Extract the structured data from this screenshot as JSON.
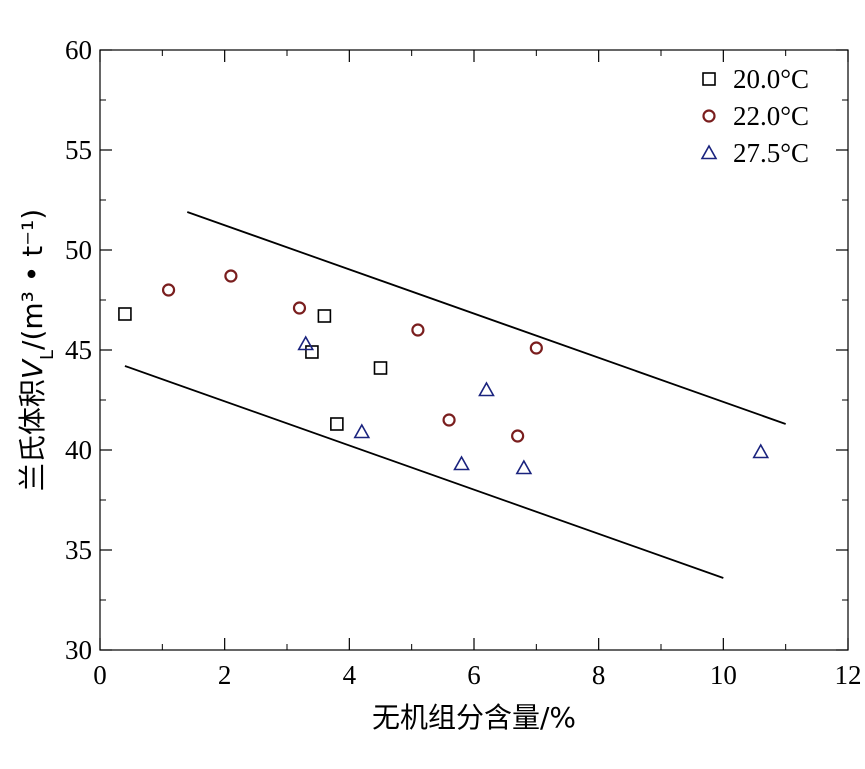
{
  "chart_data": {
    "type": "scatter",
    "xlabel": "无机组分含量/%",
    "ylabel": "兰氏体积V_L/(m³ • t⁻¹)",
    "xlim": [
      0,
      12
    ],
    "ylim": [
      30,
      60
    ],
    "xticks": [
      0,
      2,
      4,
      6,
      8,
      10,
      12
    ],
    "yticks": [
      30,
      35,
      40,
      45,
      50,
      55,
      60
    ],
    "grid": false,
    "legend_position": "top-right",
    "series": [
      {
        "name": "20.0°C",
        "marker": "square",
        "color": "#000000",
        "points": [
          [
            0.4,
            46.8
          ],
          [
            3.4,
            44.9
          ],
          [
            3.6,
            46.7
          ],
          [
            3.8,
            41.3
          ],
          [
            4.5,
            44.1
          ]
        ]
      },
      {
        "name": "22.0°C",
        "marker": "circle",
        "color": "#7a1e1e",
        "points": [
          [
            1.1,
            48.0
          ],
          [
            2.1,
            48.7
          ],
          [
            3.2,
            47.1
          ],
          [
            5.1,
            46.0
          ],
          [
            5.6,
            41.5
          ],
          [
            6.7,
            40.7
          ],
          [
            7.0,
            45.1
          ]
        ]
      },
      {
        "name": "27.5°C",
        "marker": "triangle",
        "color": "#1a237e",
        "points": [
          [
            3.3,
            45.3
          ],
          [
            4.2,
            40.9
          ],
          [
            5.8,
            39.3
          ],
          [
            6.2,
            43.0
          ],
          [
            6.8,
            39.1
          ],
          [
            10.6,
            39.9
          ]
        ]
      }
    ],
    "bounds": [
      {
        "x": [
          1.4,
          11.0
        ],
        "y": [
          51.9,
          41.3
        ]
      },
      {
        "x": [
          0.4,
          10.0
        ],
        "y": [
          44.2,
          33.6
        ]
      }
    ]
  }
}
